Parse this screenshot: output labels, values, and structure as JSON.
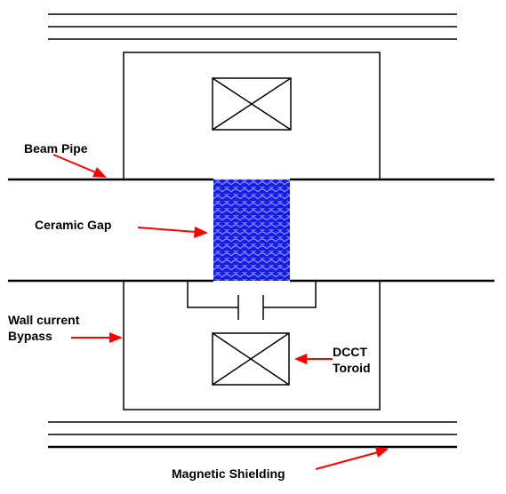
{
  "labels": {
    "beam_pipe": "Beam Pipe",
    "ceramic_gap": "Ceramic Gap",
    "wall_current_line1": "Wall current",
    "wall_current_line2": "Bypass",
    "dcct_line1": "DCCT",
    "dcct_line2": "Toroid",
    "magnetic_shielding": "Magnetic Shielding"
  },
  "colors": {
    "line": "#000000",
    "arrow": "#ff0000",
    "ceramic_fill": "#1a1ae6",
    "ceramic_scale": "#6f8cff",
    "background": "#ffffff"
  }
}
